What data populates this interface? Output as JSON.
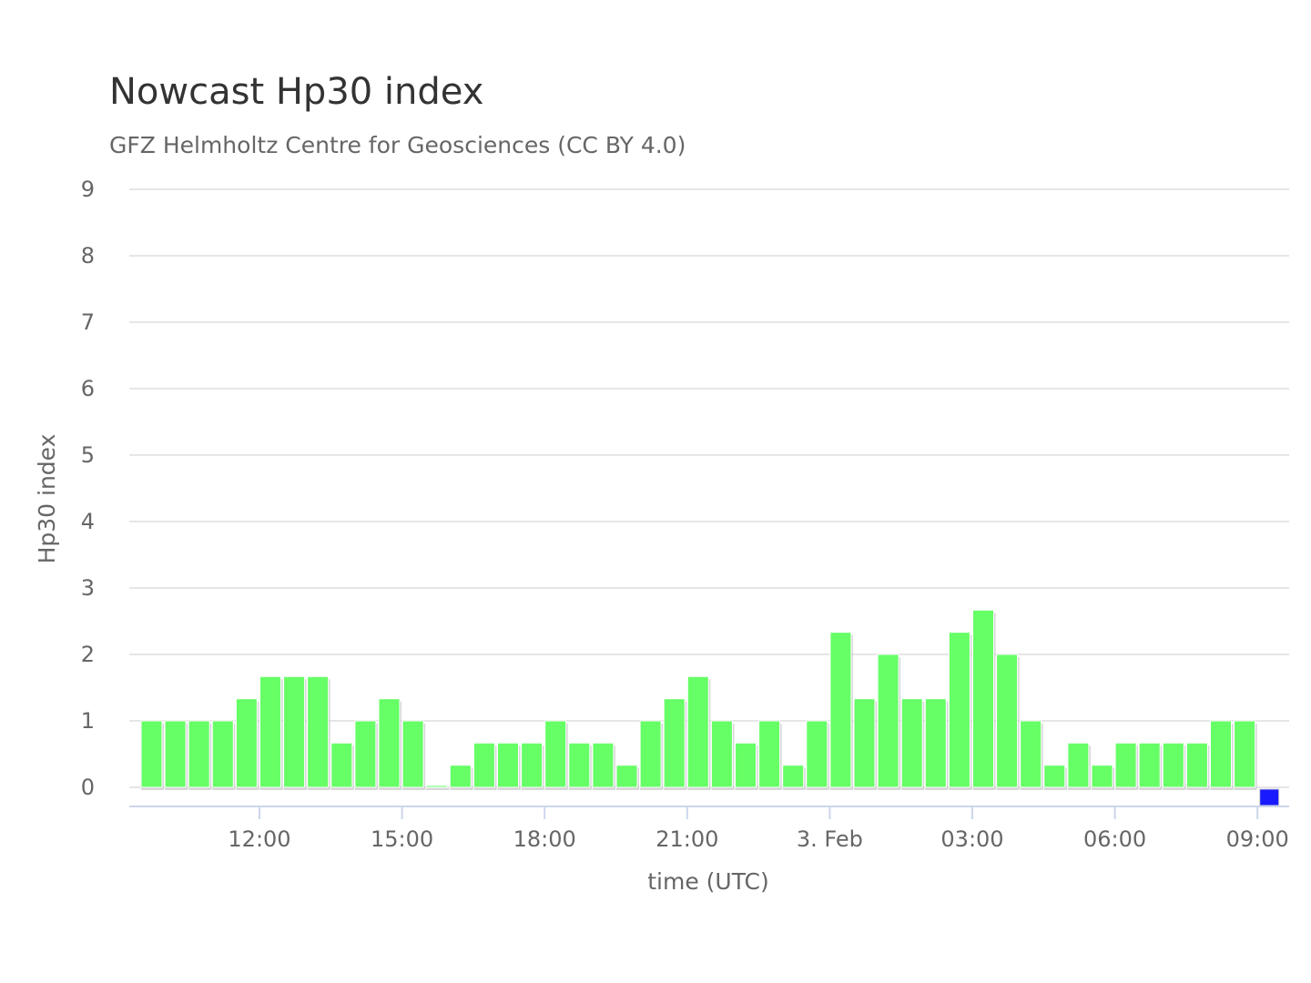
{
  "chart_data": {
    "type": "bar",
    "title": "Nowcast Hp30 index",
    "subtitle": "GFZ Helmholtz Centre for Geosciences (CC BY 4.0)",
    "xlabel": "time (UTC)",
    "ylabel": "Hp30 index",
    "ylim": [
      0,
      9
    ],
    "yticks": [
      "0",
      "1",
      "2",
      "3",
      "4",
      "5",
      "6",
      "7",
      "8",
      "9"
    ],
    "xticks": [
      "12:00",
      "15:00",
      "18:00",
      "21:00",
      "3. Feb",
      "03:00",
      "06:00",
      "09:00"
    ],
    "grid": true,
    "legend": "none",
    "bar_interval": "30 min",
    "colors": {
      "completed": "#66ff66",
      "current": "#1a1aff",
      "grid": "#e6e6e6",
      "axis": "#ccd6eb"
    },
    "x_start": "2 Feb 09:30",
    "values": [
      1,
      1,
      1,
      1,
      1.333,
      1.667,
      1.667,
      1.667,
      0.667,
      1,
      1.333,
      1,
      0,
      0.333,
      0.667,
      0.667,
      0.667,
      1,
      0.667,
      0.667,
      0.333,
      1,
      1.333,
      1.667,
      1,
      0.667,
      1,
      0.333,
      1,
      2.333,
      1.333,
      2,
      1.333,
      1.333,
      2.333,
      2.667,
      2,
      1,
      0.333,
      0.667,
      0.333,
      0.667,
      0.667,
      0.667,
      0.667,
      1,
      1,
      0
    ],
    "current_index": 47
  }
}
